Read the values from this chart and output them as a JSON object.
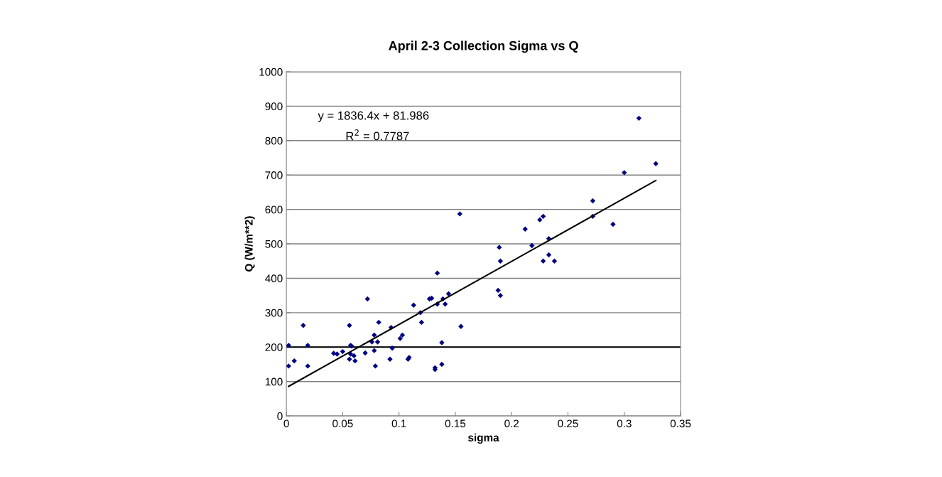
{
  "chart_data": {
    "type": "scatter",
    "title": "April 2-3 Collection Sigma vs Q",
    "xlabel": "sigma",
    "ylabel": "Q (W/m**2)",
    "annotations": [
      "y = 1836.4x + 81.986",
      "R$^{2}$ = 0.7787"
    ],
    "series": [
      {
        "color": "#000080",
        "marker": "diamond",
        "x": [
          0.002,
          0.002,
          0.007,
          0.015,
          0.019,
          0.019,
          0.042,
          0.045,
          0.05,
          0.056,
          0.057,
          0.058,
          0.057,
          0.056,
          0.06,
          0.061,
          0.07,
          0.072,
          0.076,
          0.078,
          0.079,
          0.081,
          0.082,
          0.078,
          0.092,
          0.093,
          0.094,
          0.101,
          0.103,
          0.108,
          0.109,
          0.113,
          0.119,
          0.12,
          0.127,
          0.129,
          0.132,
          0.132,
          0.134,
          0.134,
          0.139,
          0.138,
          0.138,
          0.141,
          0.144,
          0.154,
          0.155,
          0.188,
          0.189,
          0.19,
          0.19,
          0.212,
          0.218,
          0.225,
          0.228,
          0.228,
          0.233,
          0.233,
          0.238,
          0.272,
          0.272,
          0.29,
          0.3,
          0.313,
          0.328
        ],
        "values": [
          205,
          145,
          160,
          263,
          205,
          145,
          182,
          180,
          187,
          263,
          205,
          203,
          180,
          165,
          175,
          160,
          183,
          340,
          215,
          235,
          145,
          215,
          272,
          190,
          165,
          257,
          197,
          225,
          235,
          165,
          170,
          322,
          300,
          272,
          340,
          342,
          140,
          135,
          415,
          325,
          340,
          150,
          213,
          325,
          355,
          587,
          260,
          365,
          490,
          350,
          450,
          543,
          495,
          570,
          580,
          450,
          468,
          515,
          450,
          625,
          580,
          557,
          707,
          865,
          733
        ]
      },
      {
        "type": "line",
        "color": "#000000",
        "marker": "none",
        "line_style": "solid",
        "x": [
          0.002,
          0.328
        ],
        "values": [
          86,
          684
        ]
      }
    ],
    "xlim": [
      0,
      0.35
    ],
    "xticks": [
      0,
      0.05,
      0.1,
      0.15,
      0.2,
      0.25,
      0.3,
      0.35
    ],
    "ylim": [
      0,
      1000
    ],
    "yticks": [
      0,
      100,
      200,
      300,
      400,
      500,
      600,
      700,
      800,
      900,
      1000
    ],
    "grid": "y",
    "legend": false,
    "ref_lines": [
      {
        "axis": "y",
        "value": 200,
        "color": "#000000"
      }
    ]
  }
}
